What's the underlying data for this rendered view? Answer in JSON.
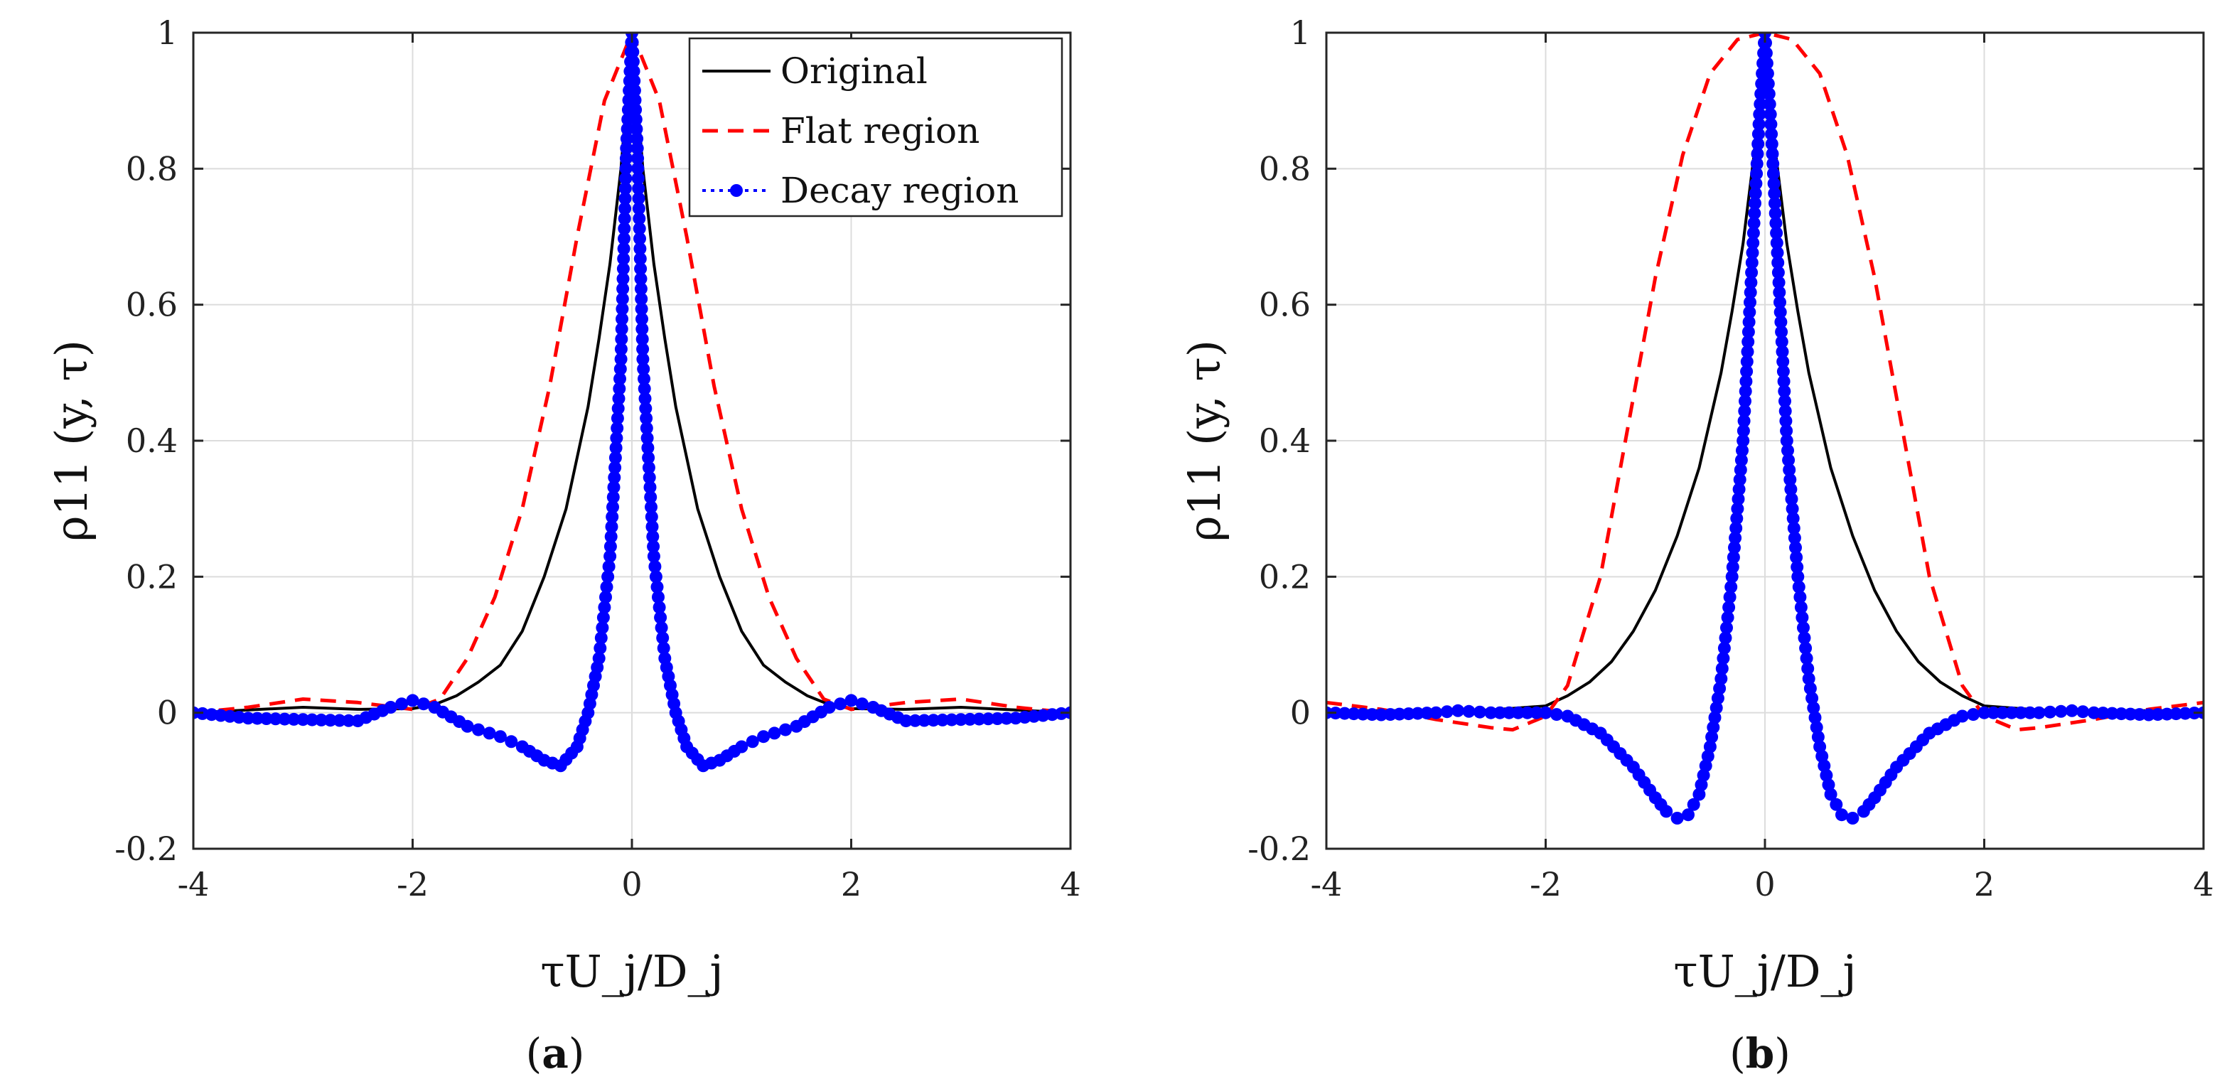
{
  "chart_data": [
    {
      "type": "line",
      "panel": "a",
      "panel_label": "a",
      "xlabel": "τU_j/D_j",
      "ylabel": "ρ11 (y, τ)",
      "xlim": [
        -4,
        4
      ],
      "ylim": [
        -0.2,
        1
      ],
      "xticks": [
        -4,
        -2,
        0,
        2,
        4
      ],
      "yticks": [
        -0.2,
        0,
        0.2,
        0.4,
        0.6,
        0.8,
        1
      ],
      "xtick_labels": [
        "-4",
        "-2",
        "0",
        "2",
        "4"
      ],
      "ytick_labels": [
        "-0.2",
        "0",
        "0.2",
        "0.4",
        "0.6",
        "0.8",
        "1"
      ],
      "grid": true,
      "legend_position": "top-right",
      "series": [
        {
          "name": "Original",
          "color": "#000000",
          "style": "solid",
          "x": [
            -4,
            -3.5,
            -3,
            -2.5,
            -2,
            -1.8,
            -1.6,
            -1.4,
            -1.2,
            -1,
            -0.8,
            -0.6,
            -0.4,
            -0.3,
            -0.2,
            -0.1,
            0,
            0.1,
            0.2,
            0.3,
            0.4,
            0.6,
            0.8,
            1,
            1.2,
            1.4,
            1.6,
            1.8,
            2,
            2.5,
            3,
            3.5,
            4
          ],
          "y": [
            0.0,
            0.004,
            0.008,
            0.005,
            0.006,
            0.012,
            0.025,
            0.045,
            0.07,
            0.12,
            0.2,
            0.3,
            0.45,
            0.55,
            0.66,
            0.8,
            1.0,
            0.8,
            0.66,
            0.55,
            0.45,
            0.3,
            0.2,
            0.12,
            0.07,
            0.045,
            0.025,
            0.012,
            0.006,
            0.005,
            0.008,
            0.004,
            0.0
          ]
        },
        {
          "name": "Flat region",
          "color": "#ff0000",
          "style": "dashed",
          "x": [
            -4,
            -3.5,
            -3,
            -2.5,
            -2,
            -1.75,
            -1.5,
            -1.25,
            -1,
            -0.75,
            -0.5,
            -0.25,
            0,
            0.25,
            0.5,
            0.75,
            1,
            1.25,
            1.5,
            1.75,
            2,
            2.5,
            3,
            3.5,
            4
          ],
          "y": [
            0.0,
            0.008,
            0.02,
            0.015,
            0.005,
            0.02,
            0.08,
            0.17,
            0.3,
            0.48,
            0.7,
            0.9,
            1.0,
            0.9,
            0.7,
            0.48,
            0.3,
            0.17,
            0.08,
            0.02,
            0.005,
            0.015,
            0.02,
            0.008,
            0.0
          ]
        },
        {
          "name": "Decay region",
          "color": "#0000ff",
          "style": "dotted-marker",
          "x": [
            -4,
            -3.5,
            -3,
            -2.5,
            -2.2,
            -2,
            -1.8,
            -1.5,
            -1.2,
            -1,
            -0.8,
            -0.65,
            -0.5,
            -0.4,
            -0.3,
            -0.2,
            -0.1,
            -0.05,
            0,
            0.05,
            0.1,
            0.2,
            0.3,
            0.4,
            0.5,
            0.65,
            0.8,
            1,
            1.2,
            1.5,
            1.8,
            2,
            2.2,
            2.5,
            3,
            3.5,
            4
          ],
          "y": [
            0.0,
            -0.008,
            -0.01,
            -0.012,
            0.008,
            0.018,
            0.008,
            -0.02,
            -0.035,
            -0.05,
            -0.07,
            -0.078,
            -0.05,
            0.0,
            0.08,
            0.23,
            0.52,
            0.83,
            1.0,
            0.83,
            0.52,
            0.23,
            0.08,
            0.0,
            -0.05,
            -0.078,
            -0.07,
            -0.05,
            -0.035,
            -0.02,
            0.008,
            0.018,
            0.008,
            -0.012,
            -0.01,
            -0.008,
            0.0
          ]
        }
      ]
    },
    {
      "type": "line",
      "panel": "b",
      "panel_label": "b",
      "xlabel": "τU_j/D_j",
      "ylabel": "ρ11 (y, τ)",
      "xlim": [
        -4,
        4
      ],
      "ylim": [
        -0.2,
        1
      ],
      "xticks": [
        -4,
        -2,
        0,
        2,
        4
      ],
      "yticks": [
        -0.2,
        0,
        0.2,
        0.4,
        0.6,
        0.8,
        1
      ],
      "xtick_labels": [
        "-4",
        "-2",
        "0",
        "2",
        "4"
      ],
      "ytick_labels": [
        "-0.2",
        "0",
        "0.2",
        "0.4",
        "0.6",
        "0.8",
        "1"
      ],
      "grid": true,
      "series": [
        {
          "name": "Original",
          "color": "#000000",
          "style": "solid",
          "x": [
            -4,
            -3,
            -2.5,
            -2,
            -1.8,
            -1.6,
            -1.4,
            -1.2,
            -1,
            -0.8,
            -0.6,
            -0.4,
            -0.3,
            -0.2,
            -0.1,
            0,
            0.1,
            0.2,
            0.3,
            0.4,
            0.6,
            0.8,
            1,
            1.2,
            1.4,
            1.6,
            1.8,
            2,
            2.5,
            3,
            4
          ],
          "y": [
            0.003,
            0.003,
            0.004,
            0.01,
            0.025,
            0.045,
            0.075,
            0.12,
            0.18,
            0.26,
            0.36,
            0.5,
            0.59,
            0.69,
            0.82,
            1.0,
            0.82,
            0.69,
            0.59,
            0.5,
            0.36,
            0.26,
            0.18,
            0.12,
            0.075,
            0.045,
            0.025,
            0.01,
            0.004,
            0.003,
            0.003
          ]
        },
        {
          "name": "Flat region",
          "color": "#ff0000",
          "style": "dashed",
          "x": [
            -4,
            -3.5,
            -3,
            -2.5,
            -2.3,
            -2,
            -1.8,
            -1.5,
            -1.25,
            -1,
            -0.75,
            -0.5,
            -0.25,
            0,
            0.25,
            0.5,
            0.75,
            1,
            1.25,
            1.5,
            1.8,
            2,
            2.3,
            2.5,
            3,
            3.5,
            4
          ],
          "y": [
            0.015,
            0.005,
            -0.01,
            -0.022,
            -0.025,
            -0.005,
            0.04,
            0.2,
            0.42,
            0.64,
            0.82,
            0.94,
            0.99,
            1.0,
            0.99,
            0.94,
            0.82,
            0.64,
            0.42,
            0.2,
            0.04,
            -0.005,
            -0.025,
            -0.022,
            -0.01,
            0.005,
            0.015
          ]
        },
        {
          "name": "Decay region",
          "color": "#0000ff",
          "style": "dotted-marker",
          "x": [
            -4,
            -3.5,
            -3,
            -2.8,
            -2.5,
            -2,
            -1.8,
            -1.5,
            -1.2,
            -1,
            -0.9,
            -0.8,
            -0.7,
            -0.6,
            -0.5,
            -0.4,
            -0.3,
            -0.2,
            -0.1,
            -0.05,
            0,
            0.05,
            0.1,
            0.2,
            0.3,
            0.4,
            0.5,
            0.6,
            0.7,
            0.8,
            0.9,
            1,
            1.2,
            1.5,
            1.8,
            2,
            2.5,
            2.8,
            3,
            3.5,
            4
          ],
          "y": [
            0.0,
            -0.003,
            0.0,
            0.003,
            0.0,
            0.0,
            -0.005,
            -0.03,
            -0.08,
            -0.125,
            -0.145,
            -0.155,
            -0.15,
            -0.12,
            -0.05,
            0.05,
            0.2,
            0.4,
            0.72,
            0.88,
            1.0,
            0.88,
            0.72,
            0.4,
            0.2,
            0.05,
            -0.05,
            -0.12,
            -0.15,
            -0.155,
            -0.145,
            -0.125,
            -0.08,
            -0.03,
            -0.005,
            0.0,
            0.0,
            0.003,
            0.0,
            -0.003,
            0.0
          ]
        }
      ]
    }
  ]
}
